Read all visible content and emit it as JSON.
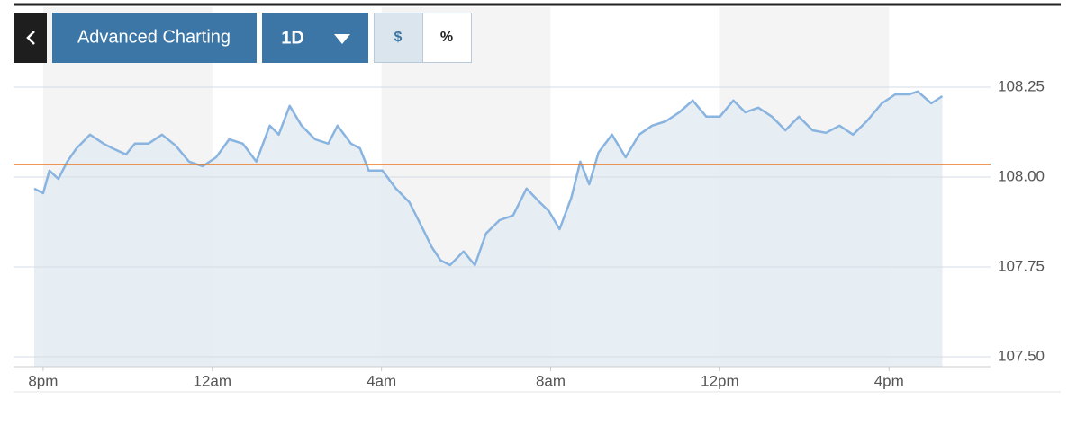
{
  "toolbar": {
    "chart_button": "Advanced Charting",
    "range_button": "1D",
    "currency_button": "$",
    "percent_button": "%"
  },
  "chart_data": {
    "type": "line",
    "color": "#8ab4e0",
    "fill": "#e3ebf2",
    "x": [
      19.79,
      20.0,
      20.15,
      20.36,
      20.57,
      20.79,
      21.11,
      21.43,
      21.64,
      21.96,
      22.17,
      22.49,
      22.81,
      23.13,
      23.45,
      23.77,
      24.09,
      24.4,
      24.72,
      25.04,
      25.36,
      25.57,
      25.83,
      26.11,
      26.43,
      26.74,
      26.96,
      27.28,
      27.49,
      27.7,
      28.02,
      28.34,
      28.66,
      28.98,
      29.19,
      29.4,
      29.62,
      29.94,
      30.21,
      30.47,
      30.79,
      31.11,
      31.43,
      31.74,
      31.96,
      32.21,
      32.49,
      32.7,
      32.91,
      33.13,
      33.45,
      33.77,
      34.09,
      34.4,
      34.72,
      35.04,
      35.36,
      35.68,
      36.0,
      36.32,
      36.6,
      36.91,
      37.23,
      37.55,
      37.87,
      38.19,
      38.51,
      38.83,
      39.15,
      39.47,
      39.83,
      40.15,
      40.47,
      40.68,
      41.0,
      41.26
    ],
    "values": [
      107.968,
      107.955,
      108.018,
      107.995,
      108.043,
      108.08,
      108.118,
      108.093,
      108.08,
      108.063,
      108.093,
      108.093,
      108.118,
      108.088,
      108.043,
      108.03,
      108.055,
      108.105,
      108.093,
      108.043,
      108.143,
      108.118,
      108.198,
      108.143,
      108.105,
      108.093,
      108.143,
      108.093,
      108.08,
      108.018,
      108.018,
      107.968,
      107.93,
      107.855,
      107.805,
      107.768,
      107.755,
      107.793,
      107.755,
      107.843,
      107.88,
      107.893,
      107.968,
      107.93,
      107.905,
      107.855,
      107.943,
      108.043,
      107.98,
      108.068,
      108.118,
      108.055,
      108.118,
      108.143,
      108.155,
      108.18,
      108.213,
      108.168,
      108.168,
      108.213,
      108.18,
      108.193,
      108.168,
      108.13,
      108.168,
      108.13,
      108.123,
      108.143,
      108.118,
      108.155,
      108.205,
      108.23,
      108.23,
      108.238,
      108.205,
      108.225
    ],
    "xlim": [
      19.3,
      42.4
    ],
    "xticks": [
      {
        "value": 20,
        "label": "8pm"
      },
      {
        "value": 24,
        "label": "12am"
      },
      {
        "value": 28,
        "label": "4am"
      },
      {
        "value": 32,
        "label": "8am"
      },
      {
        "value": 36,
        "label": "12pm"
      },
      {
        "value": 40,
        "label": "4pm"
      }
    ],
    "ylim": [
      107.4725,
      108.4725
    ],
    "yticks": [
      108.25,
      {
        "value": 108,
        "label": "108.00"
      },
      107.75,
      {
        "value": 107.5,
        "label": "107.50"
      }
    ],
    "grid": true,
    "reference_line": {
      "value": 108.035,
      "color": "#e87722"
    }
  }
}
